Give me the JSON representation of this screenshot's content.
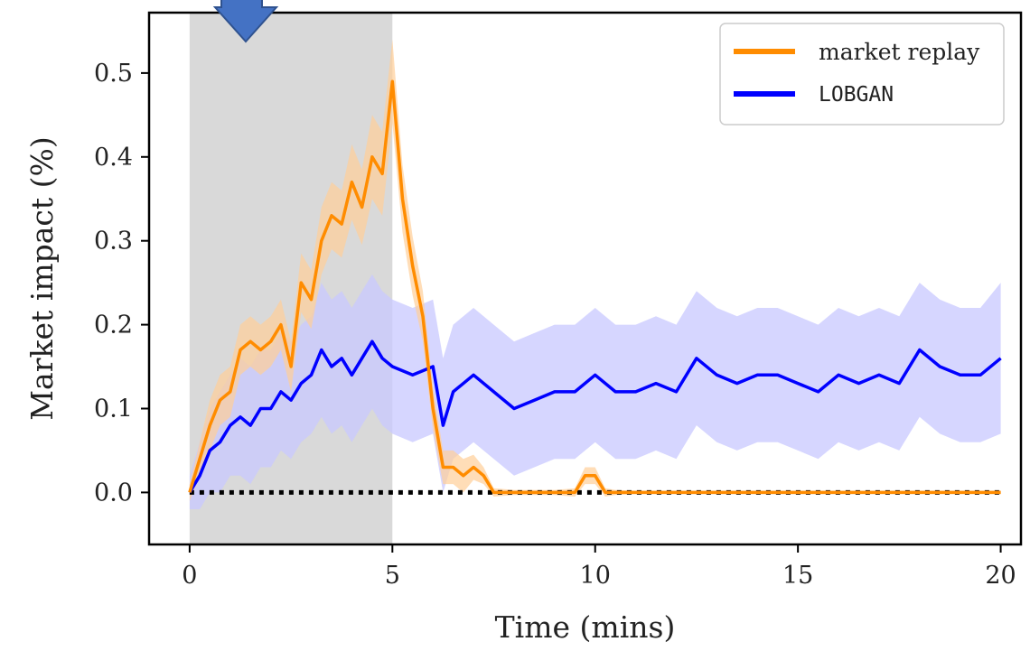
{
  "chart_data": {
    "type": "line",
    "xlabel": "Time (mins)",
    "ylabel": "Market impact (%)",
    "xlim": [
      -1,
      20.5
    ],
    "ylim": [
      -0.062,
      0.572
    ],
    "xticks": [
      0,
      5,
      10,
      15,
      20
    ],
    "xtick_labels": [
      "0",
      "5",
      "10",
      "15",
      "20"
    ],
    "yticks": [
      0.0,
      0.1,
      0.2,
      0.3,
      0.4,
      0.5
    ],
    "ytick_labels": [
      "0.0",
      "0.1",
      "0.2",
      "0.3",
      "0.4",
      "0.5"
    ],
    "shaded_region": {
      "x_start": 0,
      "x_end": 5,
      "color": "#d9d9d9"
    },
    "baseline": {
      "y": 0.0,
      "style": "dotted",
      "color": "#000000"
    },
    "legend_position": "top-right",
    "series": [
      {
        "name": "market replay",
        "color": "#ff8c00",
        "band_color": "#ffcf99",
        "x": [
          0,
          0.25,
          0.5,
          0.75,
          1.0,
          1.25,
          1.5,
          1.75,
          2.0,
          2.25,
          2.5,
          2.75,
          3.0,
          3.25,
          3.5,
          3.75,
          4.0,
          4.25,
          4.5,
          4.75,
          5.0,
          5.25,
          5.5,
          5.75,
          6.0,
          6.25,
          6.5,
          6.75,
          7.0,
          7.25,
          7.5,
          8.0,
          8.5,
          9.0,
          9.5,
          9.75,
          10.0,
          10.25,
          10.5,
          11.0,
          12.0,
          13.0,
          14.0,
          15.0,
          16.0,
          17.0,
          18.0,
          19.0,
          20.0
        ],
        "y": [
          0.0,
          0.04,
          0.08,
          0.11,
          0.12,
          0.17,
          0.18,
          0.17,
          0.18,
          0.2,
          0.15,
          0.25,
          0.23,
          0.3,
          0.33,
          0.32,
          0.37,
          0.34,
          0.4,
          0.38,
          0.49,
          0.35,
          0.27,
          0.21,
          0.1,
          0.03,
          0.03,
          0.02,
          0.03,
          0.02,
          0.0,
          0.0,
          0.0,
          0.0,
          0.0,
          0.02,
          0.02,
          0.0,
          0.0,
          0.0,
          0.0,
          0.0,
          0.0,
          0.0,
          0.0,
          0.0,
          0.0,
          0.0,
          0.0
        ],
        "band": [
          0.01,
          0.02,
          0.03,
          0.03,
          0.03,
          0.03,
          0.03,
          0.03,
          0.03,
          0.03,
          0.03,
          0.035,
          0.035,
          0.04,
          0.04,
          0.04,
          0.045,
          0.045,
          0.05,
          0.05,
          0.05,
          0.04,
          0.035,
          0.03,
          0.025,
          0.02,
          0.02,
          0.02,
          0.015,
          0.01,
          0.005,
          0.003,
          0.003,
          0.003,
          0.005,
          0.01,
          0.01,
          0.005,
          0.003,
          0.002,
          0.002,
          0.002,
          0.002,
          0.002,
          0.002,
          0.002,
          0.002,
          0.002,
          0.002
        ]
      },
      {
        "name": "LOBGAN",
        "color": "#0000ff",
        "band_color": "#c8c8ff",
        "x": [
          0,
          0.25,
          0.5,
          0.75,
          1.0,
          1.25,
          1.5,
          1.75,
          2.0,
          2.25,
          2.5,
          2.75,
          3.0,
          3.25,
          3.5,
          3.75,
          4.0,
          4.25,
          4.5,
          4.75,
          5.0,
          5.5,
          6.0,
          6.25,
          6.5,
          7.0,
          7.5,
          8.0,
          8.5,
          9.0,
          9.5,
          10.0,
          10.5,
          11.0,
          11.5,
          12.0,
          12.5,
          13.0,
          13.5,
          14.0,
          14.5,
          15.0,
          15.5,
          16.0,
          16.5,
          17.0,
          17.5,
          18.0,
          18.5,
          19.0,
          19.5,
          20.0
        ],
        "y": [
          0.0,
          0.02,
          0.05,
          0.06,
          0.08,
          0.09,
          0.08,
          0.1,
          0.1,
          0.12,
          0.11,
          0.13,
          0.14,
          0.17,
          0.15,
          0.16,
          0.14,
          0.16,
          0.18,
          0.16,
          0.15,
          0.14,
          0.15,
          0.08,
          0.12,
          0.14,
          0.12,
          0.1,
          0.11,
          0.12,
          0.12,
          0.14,
          0.12,
          0.12,
          0.13,
          0.12,
          0.16,
          0.14,
          0.13,
          0.14,
          0.14,
          0.13,
          0.12,
          0.14,
          0.13,
          0.14,
          0.13,
          0.17,
          0.15,
          0.14,
          0.14,
          0.16
        ],
        "band": [
          0.02,
          0.04,
          0.05,
          0.06,
          0.06,
          0.07,
          0.07,
          0.07,
          0.07,
          0.07,
          0.07,
          0.07,
          0.07,
          0.08,
          0.08,
          0.08,
          0.08,
          0.08,
          0.08,
          0.08,
          0.08,
          0.08,
          0.08,
          0.08,
          0.08,
          0.08,
          0.08,
          0.08,
          0.08,
          0.08,
          0.08,
          0.08,
          0.08,
          0.08,
          0.08,
          0.08,
          0.08,
          0.08,
          0.08,
          0.08,
          0.08,
          0.08,
          0.08,
          0.08,
          0.08,
          0.08,
          0.08,
          0.08,
          0.08,
          0.08,
          0.08,
          0.09
        ]
      }
    ]
  },
  "colors": {
    "arrow": "#4472c4",
    "arrow_outline": "#2f528f"
  },
  "annotation": {
    "arrow_icon": "down-arrow-icon"
  }
}
